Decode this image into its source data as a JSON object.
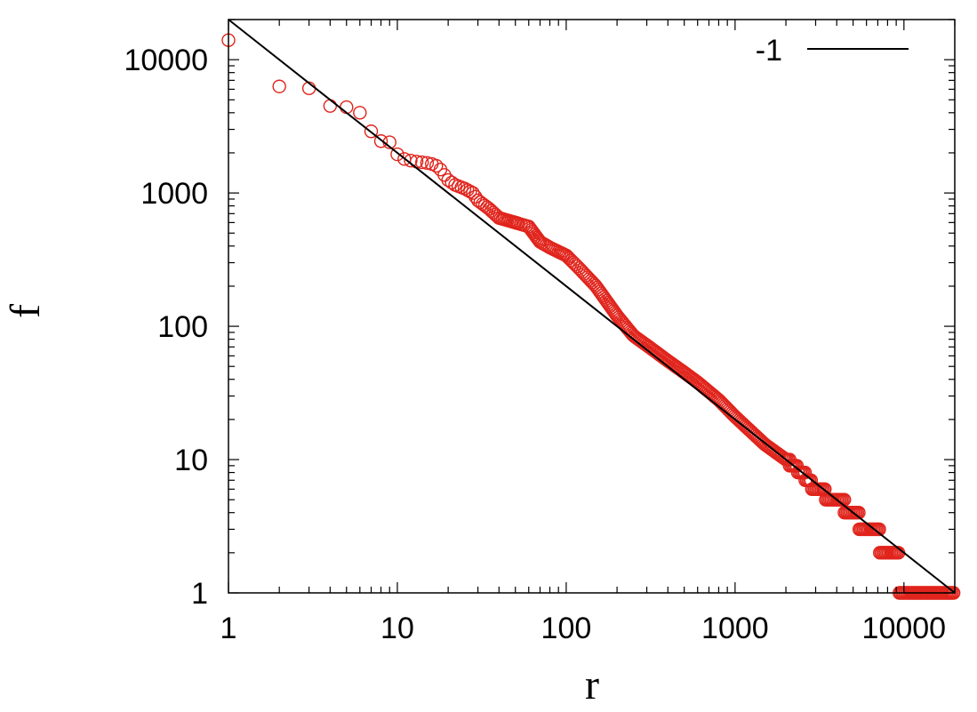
{
  "chart_data": {
    "type": "scatter",
    "title": "",
    "xlabel": "r",
    "ylabel": "f",
    "xscale": "log",
    "yscale": "log",
    "xlim": [
      1,
      20000
    ],
    "ylim": [
      1,
      20000
    ],
    "x_ticks": [
      1,
      10,
      100,
      1000,
      10000
    ],
    "y_ticks": [
      1,
      10,
      100,
      1000,
      10000
    ],
    "x_tick_labels": [
      "1",
      "10",
      "100",
      "1000",
      "10000"
    ],
    "y_tick_labels": [
      "1",
      "10",
      "100",
      "1000",
      "10000"
    ],
    "grid": false,
    "legend_position": "top-right",
    "colors": {
      "points": "#e0241c",
      "line": "#000000",
      "frame": "#000000"
    },
    "series": [
      {
        "kind": "points",
        "marker": "open-circle",
        "anchors": [
          [
            1,
            14000
          ],
          [
            2,
            6300
          ],
          [
            3,
            6100
          ],
          [
            4,
            4500
          ],
          [
            5,
            4400
          ],
          [
            6,
            4000
          ],
          [
            7,
            2900
          ],
          [
            8,
            2450
          ],
          [
            9,
            2400
          ],
          [
            10,
            1950
          ],
          [
            11,
            1800
          ],
          [
            12,
            1750
          ],
          [
            13,
            1720
          ],
          [
            14,
            1700
          ],
          [
            15,
            1680
          ],
          [
            16,
            1650
          ],
          [
            17,
            1600
          ],
          [
            18,
            1500
          ],
          [
            20,
            1250
          ],
          [
            22,
            1150
          ],
          [
            25,
            1080
          ],
          [
            28,
            1000
          ],
          [
            30,
            880
          ],
          [
            35,
            760
          ],
          [
            40,
            650
          ],
          [
            50,
            600
          ],
          [
            60,
            560
          ],
          [
            70,
            430
          ],
          [
            80,
            390
          ],
          [
            100,
            340
          ],
          [
            120,
            270
          ],
          [
            150,
            200
          ],
          [
            200,
            120
          ],
          [
            250,
            85
          ],
          [
            300,
            72
          ],
          [
            400,
            55
          ],
          [
            500,
            45
          ],
          [
            600,
            38
          ],
          [
            800,
            28
          ],
          [
            1000,
            21
          ],
          [
            1500,
            13
          ],
          [
            2000,
            10
          ],
          [
            2500,
            8
          ],
          [
            3000,
            6
          ],
          [
            4000,
            5
          ],
          [
            5000,
            4
          ],
          [
            6000,
            3
          ],
          [
            9000,
            2
          ],
          [
            10000,
            1
          ],
          [
            20000,
            1
          ]
        ]
      },
      {
        "kind": "line",
        "name": "-1",
        "slope": -1,
        "points": [
          [
            1,
            20000
          ],
          [
            20000,
            1
          ]
        ]
      }
    ]
  }
}
